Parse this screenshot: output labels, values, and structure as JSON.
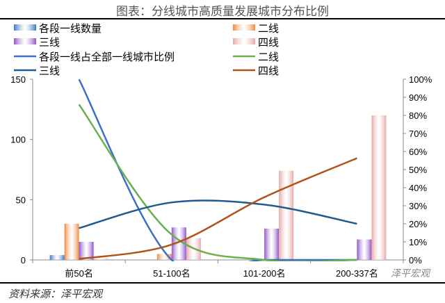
{
  "title": "图表：分线城市高质量发展城市分布比例",
  "source": "资料来源：泽平宏观",
  "watermark": "泽平宏观",
  "chart_data": {
    "type": "bar+line",
    "categories": [
      "前50名",
      "51-100名",
      "101-200名",
      "200-337名"
    ],
    "left_axis": {
      "ylim": [
        0,
        150
      ],
      "ticks": [
        "0",
        "50",
        "100",
        "150"
      ]
    },
    "right_axis": {
      "ylim": [
        0,
        100
      ],
      "ticks": [
        "0%",
        "10%",
        "20%",
        "30%",
        "40%",
        "50%",
        "60%",
        "70%",
        "80%",
        "90%",
        "100%"
      ]
    },
    "bar_series": [
      {
        "name": "各段一线数量",
        "values": [
          4,
          0,
          0,
          0
        ],
        "color": "#3a78c2"
      },
      {
        "name": "二线",
        "values": [
          30,
          5,
          0,
          0
        ],
        "color": "#f08a3c"
      },
      {
        "name": "三线",
        "values": [
          15,
          27,
          26,
          17
        ],
        "color": "#8e54c8"
      },
      {
        "name": "四线",
        "values": [
          1,
          18,
          74,
          120
        ],
        "color": "#e6a9a9"
      }
    ],
    "line_series": [
      {
        "name": "各段一线占全部一线城市比例",
        "values": [
          100,
          0,
          0,
          0
        ],
        "color": "#3d6fc9"
      },
      {
        "name": "二线",
        "values": [
          86,
          14,
          0,
          0
        ],
        "color": "#6ab04c"
      },
      {
        "name": "三线",
        "values": [
          17.6,
          31.8,
          30.6,
          20
        ],
        "color": "#1f5a8f"
      },
      {
        "name": "四线",
        "values": [
          0.5,
          8.5,
          34.7,
          56.3
        ],
        "color": "#b0521a"
      }
    ],
    "legend": "top"
  }
}
